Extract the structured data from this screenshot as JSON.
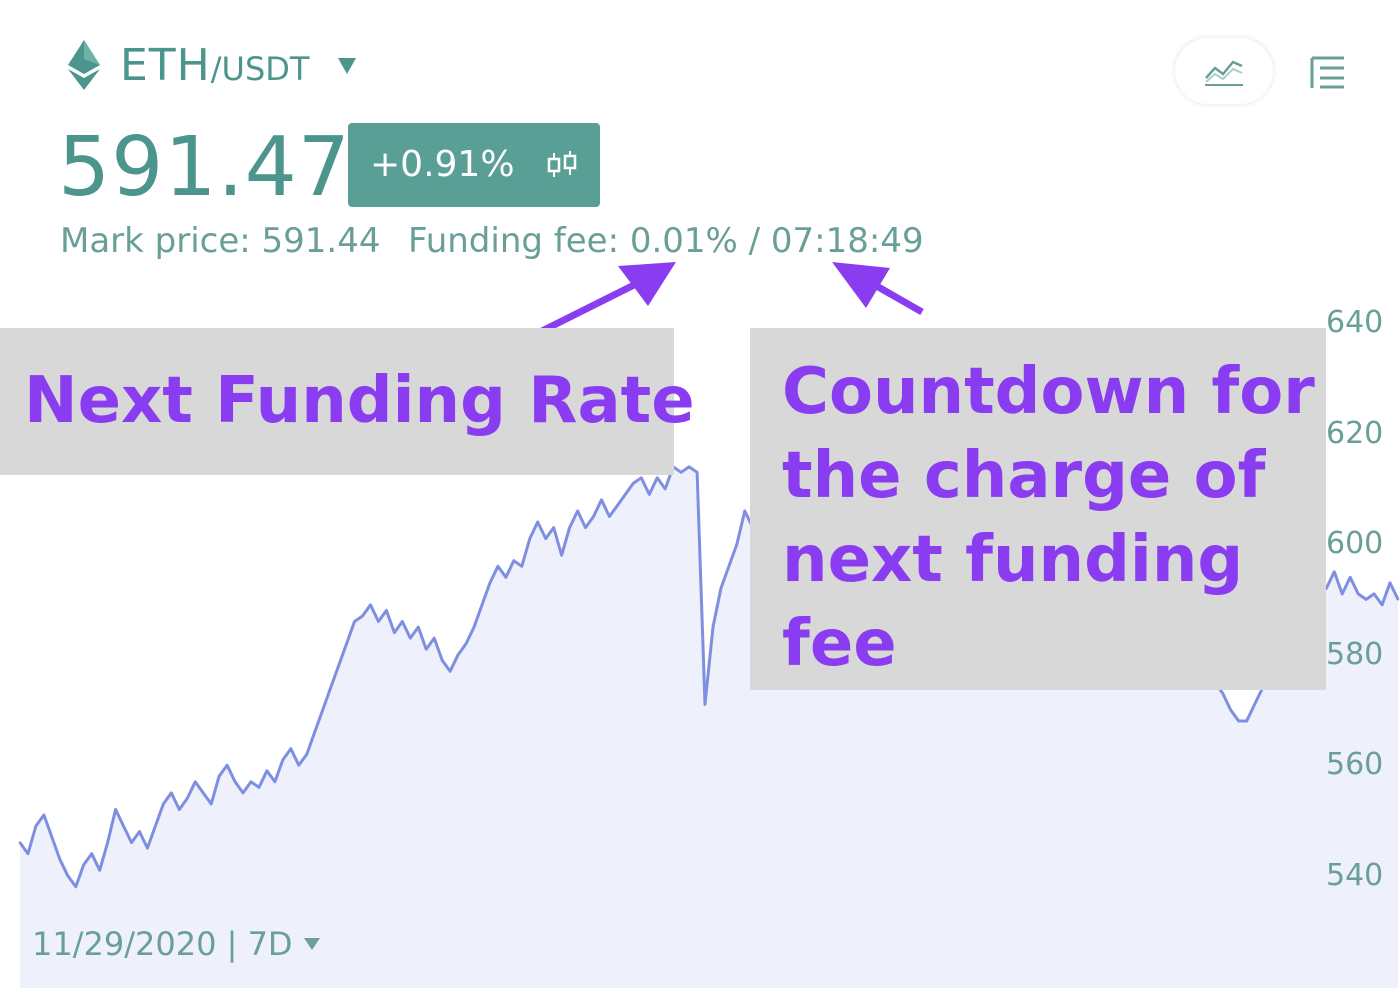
{
  "header": {
    "pair_base": "ETH",
    "pair_quote": "/USDT",
    "price": "591.47",
    "change_pct": "+0.91%",
    "mark_price_text": "Mark price: 591.44",
    "funding_text": "Funding fee: 0.01% / 07:18:49",
    "icons": {
      "coin": "ethereum-logo-icon",
      "pair_dropdown": "caret-down-icon",
      "candle": "candlestick-icon",
      "line_view": "line-chart-icon",
      "list_view": "list-icon"
    }
  },
  "footer": {
    "date_range": "11/29/2020 | 7D"
  },
  "annotations": {
    "next_rate": "Next Funding Rate",
    "countdown_lines": [
      "Countdown for",
      "the charge of",
      "next funding",
      "fee"
    ]
  },
  "colors": {
    "primary": "#4b958c",
    "line": "#7f8fe0",
    "fill": "#eef0fc",
    "callout_text": "#8a3df0",
    "callout_bg": "#d8d8d8"
  },
  "chart_data": {
    "type": "area",
    "ylim": [
      532,
      642
    ],
    "yticks": [
      640,
      620,
      600,
      580,
      560,
      540
    ],
    "series": [
      {
        "values": [
          546,
          544,
          549,
          551,
          547,
          543,
          540,
          538,
          542,
          544,
          541,
          546,
          552,
          549,
          546,
          548,
          545,
          549,
          553,
          555,
          552,
          554,
          557,
          555,
          553,
          558,
          560,
          557,
          555,
          557,
          556,
          559,
          557,
          561,
          563,
          560,
          562,
          566,
          570,
          574,
          578,
          582,
          586,
          587,
          589,
          586,
          588,
          584,
          586,
          583,
          585,
          581,
          583,
          579,
          577,
          580,
          582,
          585,
          589,
          593,
          596,
          594,
          597,
          596,
          601,
          604,
          601,
          603,
          598,
          603,
          606,
          603,
          605,
          608,
          605,
          607,
          609,
          611,
          612,
          609,
          612,
          610,
          614,
          613,
          614,
          613,
          571,
          585,
          592,
          596,
          600,
          606,
          603,
          605,
          597,
          595,
          592,
          593,
          589,
          593,
          595,
          591,
          590,
          587,
          588,
          584,
          590,
          592,
          589,
          584,
          581,
          584,
          582,
          586,
          590,
          592,
          594,
          598,
          600,
          596,
          598,
          604,
          607,
          602,
          605,
          603,
          607,
          604,
          601,
          599,
          601,
          598,
          597,
          598,
          600,
          598,
          595,
          594,
          596,
          598,
          595,
          593,
          591,
          589,
          587,
          585,
          583,
          581,
          579,
          577,
          575,
          573,
          570,
          568,
          568,
          571,
          574,
          577,
          580,
          583,
          585,
          587,
          591,
          594,
          592,
          595,
          591,
          594,
          591,
          590,
          591,
          589,
          593,
          590
        ]
      }
    ]
  }
}
